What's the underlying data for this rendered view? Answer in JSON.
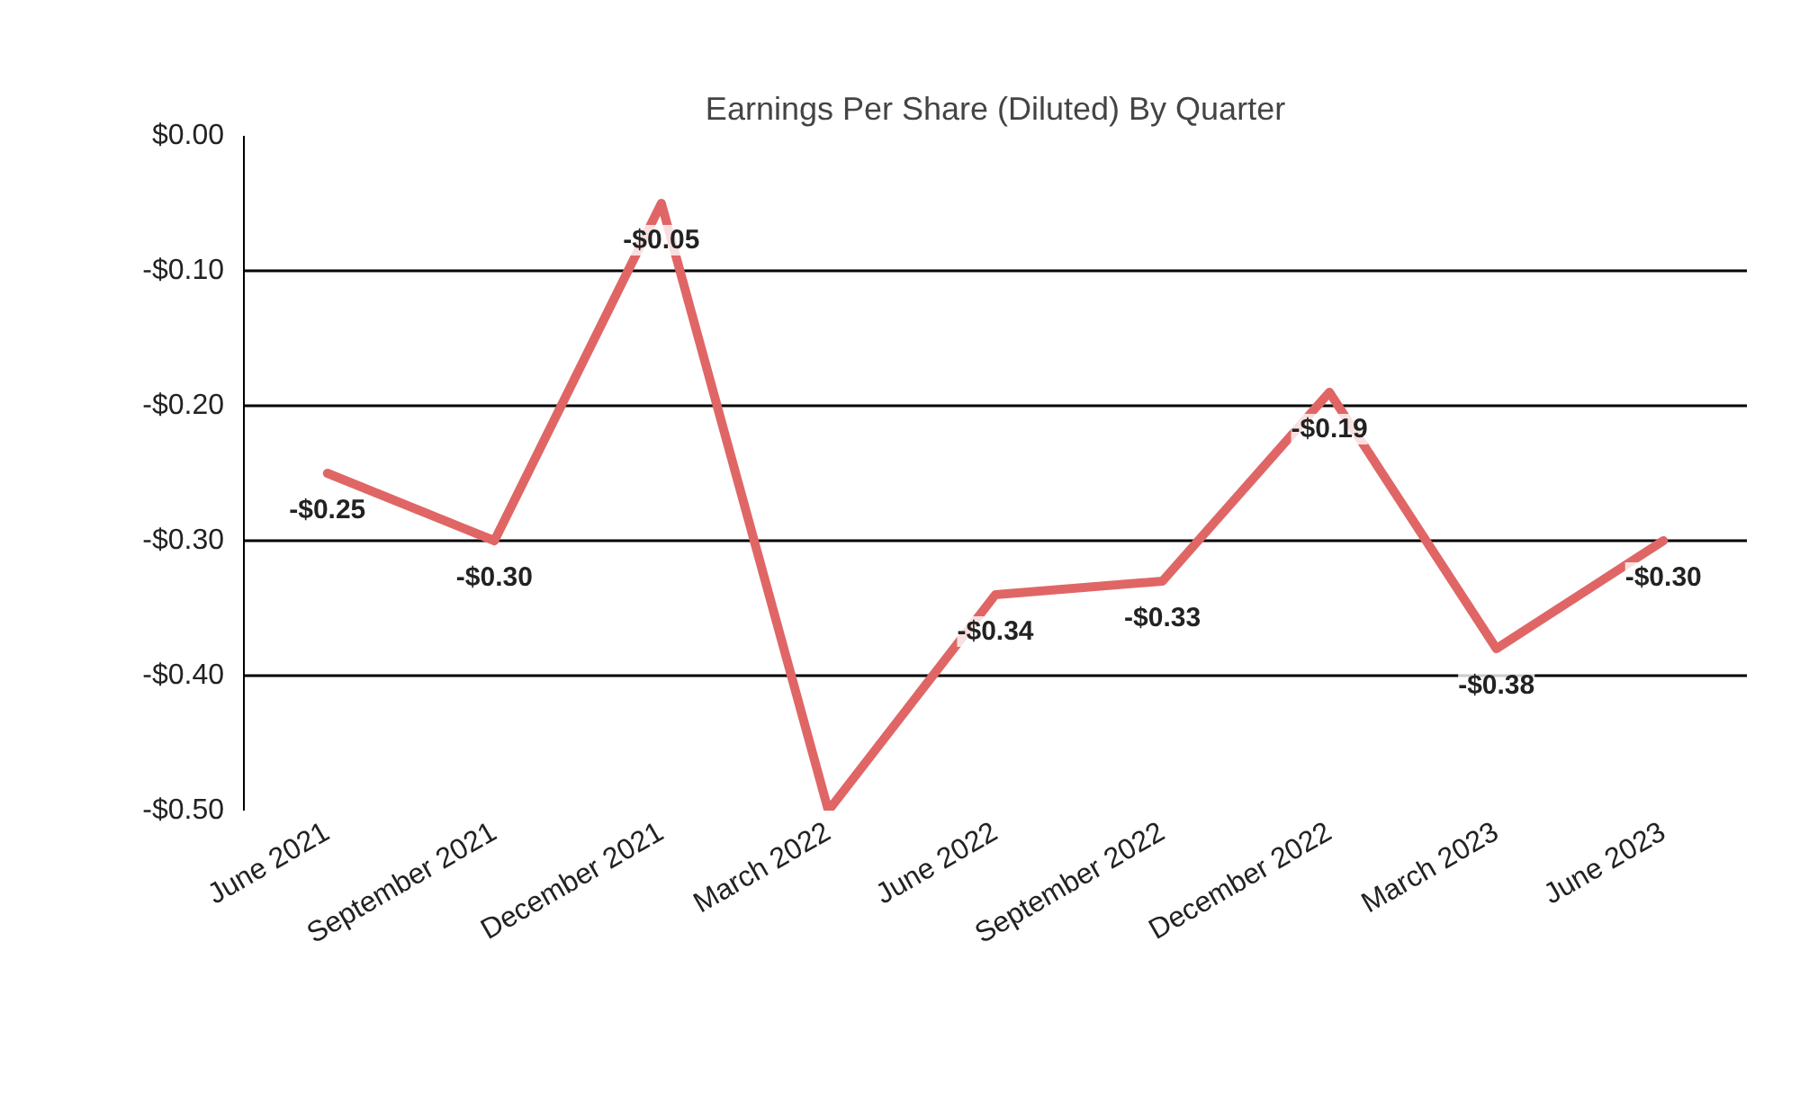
{
  "chart_data": {
    "type": "line",
    "title": "Earnings Per Share (Diluted) By Quarter",
    "categories": [
      "June 2021",
      "September 2021",
      "December 2021",
      "March 2022",
      "June 2022",
      "September 2022",
      "December 2022",
      "March 2023",
      "June 2023"
    ],
    "series": [
      {
        "color": "#e06666",
        "values": [
          -0.25,
          -0.3,
          -0.05,
          -0.5,
          -0.34,
          -0.33,
          -0.19,
          -0.38,
          -0.3
        ]
      }
    ],
    "value_labels": [
      "-$0.25",
      "-$0.30",
      "-$0.05",
      null,
      "-$0.34",
      "-$0.33",
      "-$0.19",
      "-$0.38",
      "-$0.30"
    ],
    "ylim": [
      -0.5,
      0
    ],
    "yticks": [
      {
        "value": 0,
        "label": "$0.00"
      },
      {
        "value": -0.1,
        "label": "-$0.10"
      },
      {
        "value": -0.2,
        "label": "-$0.20"
      },
      {
        "value": -0.3,
        "label": "-$0.30"
      },
      {
        "value": -0.4,
        "label": "-$0.40"
      },
      {
        "value": -0.5,
        "label": "-$0.50"
      }
    ],
    "grid": "y",
    "marker": "none",
    "line_style": "solid"
  }
}
